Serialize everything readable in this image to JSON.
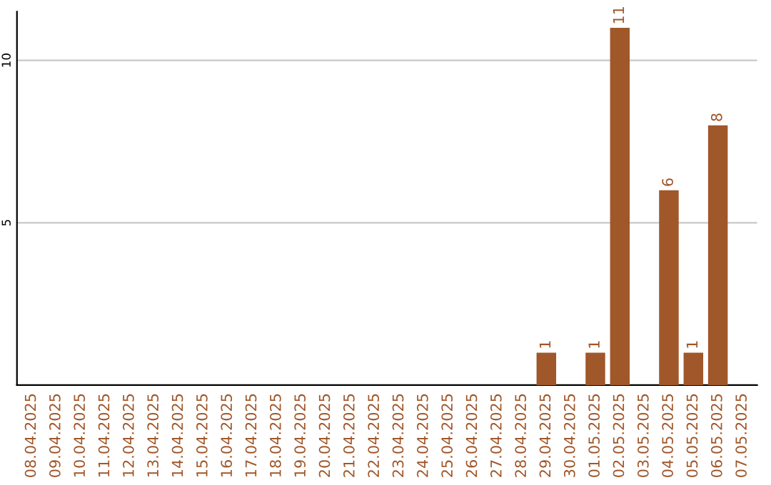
{
  "chart_data": {
    "type": "bar",
    "categories": [
      "08.04.2025",
      "09.04.2025",
      "10.04.2025",
      "11.04.2025",
      "12.04.2025",
      "13.04.2025",
      "14.04.2025",
      "15.04.2025",
      "16.04.2025",
      "17.04.2025",
      "18.04.2025",
      "19.04.2025",
      "20.04.2025",
      "21.04.2025",
      "22.04.2025",
      "23.04.2025",
      "24.04.2025",
      "25.04.2025",
      "26.04.2025",
      "27.04.2025",
      "28.04.2025",
      "29.04.2025",
      "30.04.2025",
      "01.05.2025",
      "02.05.2025",
      "03.05.2025",
      "04.05.2025",
      "05.05.2025",
      "06.05.2025",
      "07.05.2025"
    ],
    "values": [
      0,
      0,
      0,
      0,
      0,
      0,
      0,
      0,
      0,
      0,
      0,
      0,
      0,
      0,
      0,
      0,
      0,
      0,
      0,
      0,
      0,
      1,
      0,
      1,
      11,
      0,
      6,
      1,
      8,
      0
    ],
    "value_labels": [
      null,
      null,
      null,
      null,
      null,
      null,
      null,
      null,
      null,
      null,
      null,
      null,
      null,
      null,
      null,
      null,
      null,
      null,
      null,
      null,
      null,
      "1",
      null,
      "1",
      "11",
      null,
      "6",
      "1",
      "8",
      null
    ],
    "color": "#a0572a",
    "ylim": [
      0,
      11.5
    ],
    "yticks": [
      5,
      10
    ],
    "grid": "y"
  }
}
